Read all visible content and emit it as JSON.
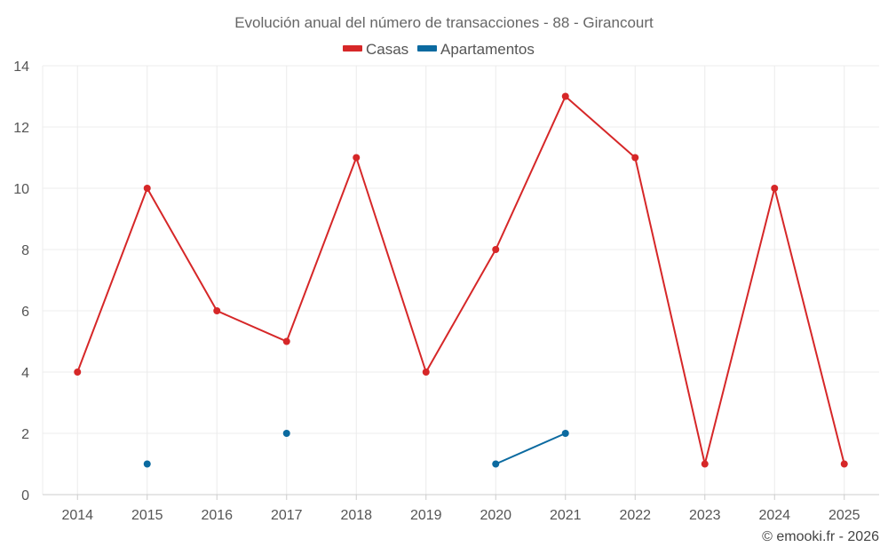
{
  "chart_data": {
    "type": "line",
    "title": "Evolución anual del número de transacciones - 88 - Girancourt",
    "categories": [
      "2014",
      "2015",
      "2016",
      "2017",
      "2018",
      "2019",
      "2020",
      "2021",
      "2022",
      "2023",
      "2024",
      "2025"
    ],
    "ylim": [
      0,
      14
    ],
    "yticks": [
      0,
      2,
      4,
      6,
      8,
      10,
      12,
      14
    ],
    "yticks_labels": [
      "0",
      "2",
      "4",
      "6",
      "8",
      "10",
      "12",
      "14"
    ],
    "xlabel": "",
    "ylabel": "",
    "grid": true,
    "legend_position": "top-center",
    "series": [
      {
        "name": "Casas",
        "color": "#d62728",
        "values": [
          4,
          10,
          6,
          5,
          11,
          4,
          8,
          13,
          11,
          1,
          10,
          1
        ]
      },
      {
        "name": "Apartamentos",
        "color": "#0b6aa0",
        "values": [
          null,
          1,
          null,
          2,
          null,
          null,
          1,
          2,
          null,
          null,
          null,
          null
        ]
      }
    ]
  },
  "credit": "© emooki.fr - 2026"
}
